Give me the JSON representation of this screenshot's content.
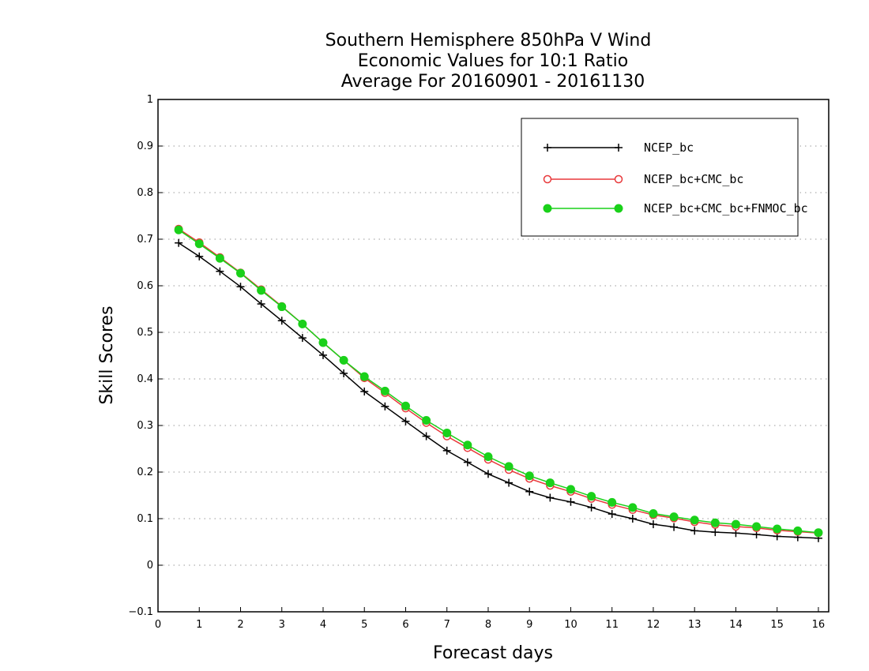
{
  "chart_data": {
    "type": "line",
    "title_lines": [
      "Southern Hemisphere 850hPa V Wind",
      "Economic Values for 10:1 Ratio",
      "Average For 20160901 - 20161130"
    ],
    "xlabel": "Forecast days",
    "ylabel": "Skill Scores",
    "xlim": [
      0,
      16.25
    ],
    "ylim": [
      -0.1,
      1
    ],
    "x_ticks": [
      "0",
      "1",
      "2",
      "3",
      "4",
      "5",
      "6",
      "7",
      "8",
      "9",
      "10",
      "11",
      "12",
      "13",
      "14",
      "15",
      "16"
    ],
    "y_ticks": [
      "−0.1",
      "0",
      "0.1",
      "0.2",
      "0.3",
      "0.4",
      "0.5",
      "0.6",
      "0.7",
      "0.8",
      "0.9",
      "1"
    ],
    "grid": true,
    "legend_position": "top-right",
    "x": [
      0.5,
      1,
      1.5,
      2,
      2.5,
      3,
      3.5,
      4,
      4.5,
      5,
      5.5,
      6,
      6.5,
      7,
      7.5,
      8,
      8.5,
      9,
      9.5,
      10,
      10.5,
      11,
      11.5,
      12,
      12.5,
      13,
      13.5,
      14,
      14.5,
      15,
      15.5,
      16
    ],
    "series": [
      {
        "name": "NCEP_bc",
        "color": "#000000",
        "marker": "plus",
        "values": [
          0.692,
          0.663,
          0.631,
          0.598,
          0.561,
          0.525,
          0.488,
          0.451,
          0.412,
          0.373,
          0.341,
          0.309,
          0.277,
          0.246,
          0.221,
          0.196,
          0.177,
          0.158,
          0.145,
          0.136,
          0.124,
          0.11,
          0.1,
          0.088,
          0.082,
          0.074,
          0.071,
          0.069,
          0.066,
          0.062,
          0.06,
          0.058
        ]
      },
      {
        "name": "NCEP_bc+CMC_bc",
        "color": "#e8393b",
        "marker": "open-circle",
        "values": [
          0.722,
          0.693,
          0.661,
          0.628,
          0.592,
          0.556,
          0.518,
          0.478,
          0.44,
          0.402,
          0.37,
          0.337,
          0.306,
          0.277,
          0.252,
          0.227,
          0.205,
          0.186,
          0.171,
          0.158,
          0.143,
          0.13,
          0.119,
          0.108,
          0.101,
          0.093,
          0.087,
          0.083,
          0.08,
          0.075,
          0.072,
          0.069
        ]
      },
      {
        "name": "NCEP_bc+CMC_bc+FNMOC_bc",
        "color": "#1ad11a",
        "marker": "filled-circle",
        "values": [
          0.72,
          0.69,
          0.659,
          0.627,
          0.59,
          0.555,
          0.518,
          0.478,
          0.44,
          0.405,
          0.374,
          0.342,
          0.311,
          0.284,
          0.258,
          0.233,
          0.212,
          0.192,
          0.177,
          0.163,
          0.148,
          0.135,
          0.124,
          0.111,
          0.104,
          0.097,
          0.091,
          0.088,
          0.083,
          0.078,
          0.074,
          0.07
        ]
      }
    ]
  }
}
